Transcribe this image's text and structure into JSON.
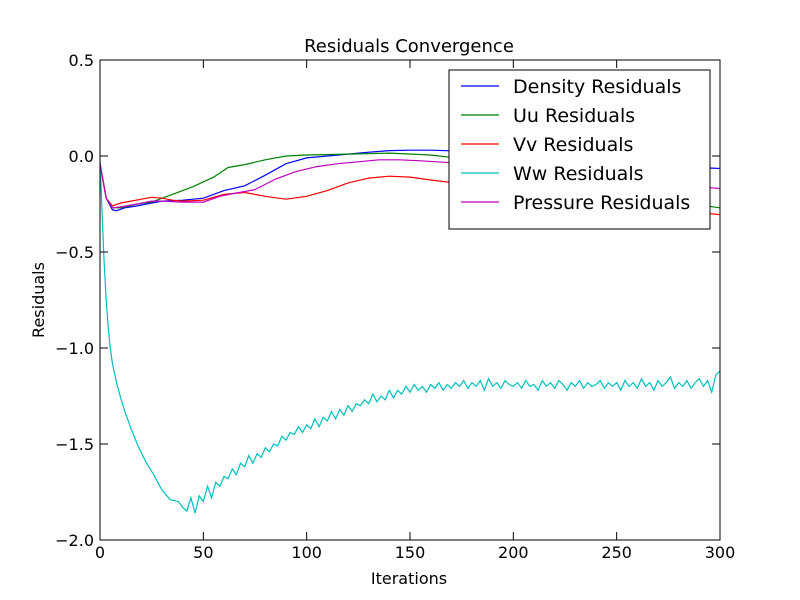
{
  "chart_data": {
    "type": "line",
    "title": "Residuals Convergence",
    "xlabel": "Iterations",
    "ylabel": "Residuals",
    "xlim": [
      0,
      300
    ],
    "ylim": [
      -2.0,
      0.5
    ],
    "x_ticks": [
      "0",
      "50",
      "100",
      "150",
      "200",
      "250",
      "300"
    ],
    "y_ticks": [
      "0.5",
      "0.0",
      "−0.5",
      "−1.0",
      "−1.5",
      "−2.0"
    ],
    "grid": false,
    "legend_position": "top-right",
    "series": [
      {
        "name": "Density Residuals",
        "color": "#0000ff",
        "points": [
          [
            0,
            -0.04
          ],
          [
            3,
            -0.22
          ],
          [
            6,
            -0.28
          ],
          [
            8,
            -0.285
          ],
          [
            12,
            -0.27
          ],
          [
            18,
            -0.26
          ],
          [
            25,
            -0.245
          ],
          [
            30,
            -0.235
          ],
          [
            40,
            -0.23
          ],
          [
            50,
            -0.22
          ],
          [
            60,
            -0.18
          ],
          [
            70,
            -0.155
          ],
          [
            80,
            -0.1
          ],
          [
            90,
            -0.04
          ],
          [
            100,
            -0.01
          ],
          [
            110,
            0.0
          ],
          [
            120,
            0.01
          ],
          [
            130,
            0.02
          ],
          [
            140,
            0.028
          ],
          [
            150,
            0.03
          ],
          [
            160,
            0.03
          ],
          [
            175,
            0.025
          ],
          [
            190,
            0.01
          ],
          [
            205,
            -0.005
          ],
          [
            220,
            -0.02
          ],
          [
            240,
            -0.035
          ],
          [
            260,
            -0.045
          ],
          [
            280,
            -0.055
          ],
          [
            300,
            -0.065
          ]
        ]
      },
      {
        "name": "Uu Residuals",
        "color": "#008000",
        "points": [
          [
            0,
            -0.04
          ],
          [
            3,
            -0.22
          ],
          [
            6,
            -0.27
          ],
          [
            10,
            -0.27
          ],
          [
            18,
            -0.25
          ],
          [
            25,
            -0.24
          ],
          [
            35,
            -0.2
          ],
          [
            45,
            -0.16
          ],
          [
            55,
            -0.11
          ],
          [
            62,
            -0.06
          ],
          [
            70,
            -0.045
          ],
          [
            80,
            -0.02
          ],
          [
            90,
            0.0
          ],
          [
            100,
            0.005
          ],
          [
            120,
            0.01
          ],
          [
            140,
            0.015
          ],
          [
            160,
            0.005
          ],
          [
            180,
            -0.02
          ],
          [
            200,
            -0.06
          ],
          [
            220,
            -0.1
          ],
          [
            240,
            -0.15
          ],
          [
            260,
            -0.2
          ],
          [
            280,
            -0.24
          ],
          [
            300,
            -0.27
          ]
        ]
      },
      {
        "name": "Vv Residuals",
        "color": "#ff0000",
        "points": [
          [
            0,
            -0.04
          ],
          [
            3,
            -0.22
          ],
          [
            6,
            -0.26
          ],
          [
            10,
            -0.245
          ],
          [
            15,
            -0.235
          ],
          [
            20,
            -0.225
          ],
          [
            25,
            -0.215
          ],
          [
            30,
            -0.22
          ],
          [
            35,
            -0.23
          ],
          [
            40,
            -0.235
          ],
          [
            50,
            -0.23
          ],
          [
            60,
            -0.2
          ],
          [
            70,
            -0.19
          ],
          [
            80,
            -0.21
          ],
          [
            90,
            -0.225
          ],
          [
            100,
            -0.21
          ],
          [
            110,
            -0.18
          ],
          [
            120,
            -0.14
          ],
          [
            130,
            -0.115
          ],
          [
            140,
            -0.105
          ],
          [
            150,
            -0.11
          ],
          [
            160,
            -0.125
          ],
          [
            175,
            -0.145
          ],
          [
            190,
            -0.165
          ],
          [
            210,
            -0.19
          ],
          [
            230,
            -0.22
          ],
          [
            250,
            -0.25
          ],
          [
            270,
            -0.275
          ],
          [
            290,
            -0.295
          ],
          [
            300,
            -0.305
          ]
        ]
      },
      {
        "name": "Ww Residuals",
        "color": "#00bfbf",
        "points": [
          [
            0,
            -0.02
          ],
          [
            1,
            -0.3
          ],
          [
            2,
            -0.55
          ],
          [
            3,
            -0.75
          ],
          [
            4,
            -0.9
          ],
          [
            5,
            -1.0
          ],
          [
            6,
            -1.08
          ],
          [
            8,
            -1.18
          ],
          [
            10,
            -1.26
          ],
          [
            12,
            -1.33
          ],
          [
            15,
            -1.42
          ],
          [
            18,
            -1.5
          ],
          [
            22,
            -1.59
          ],
          [
            26,
            -1.66
          ],
          [
            30,
            -1.74
          ],
          [
            34,
            -1.79
          ],
          [
            38,
            -1.8
          ],
          [
            40,
            -1.83
          ],
          [
            42,
            -1.85
          ],
          [
            44,
            -1.78
          ],
          [
            46,
            -1.86
          ],
          [
            48,
            -1.77
          ],
          [
            50,
            -1.8
          ],
          [
            52,
            -1.72
          ],
          [
            54,
            -1.78
          ],
          [
            56,
            -1.7
          ],
          [
            58,
            -1.72
          ],
          [
            60,
            -1.67
          ],
          [
            62,
            -1.68
          ],
          [
            64,
            -1.63
          ],
          [
            66,
            -1.66
          ],
          [
            68,
            -1.6
          ],
          [
            70,
            -1.62
          ],
          [
            72,
            -1.56
          ],
          [
            74,
            -1.6
          ],
          [
            76,
            -1.55
          ],
          [
            78,
            -1.57
          ],
          [
            80,
            -1.52
          ],
          [
            82,
            -1.54
          ],
          [
            84,
            -1.5
          ],
          [
            86,
            -1.51
          ],
          [
            88,
            -1.46
          ],
          [
            90,
            -1.48
          ],
          [
            92,
            -1.44
          ],
          [
            94,
            -1.45
          ],
          [
            96,
            -1.41
          ],
          [
            98,
            -1.44
          ],
          [
            100,
            -1.4
          ],
          [
            102,
            -1.42
          ],
          [
            104,
            -1.37
          ],
          [
            106,
            -1.41
          ],
          [
            108,
            -1.36
          ],
          [
            110,
            -1.38
          ],
          [
            112,
            -1.33
          ],
          [
            114,
            -1.37
          ],
          [
            116,
            -1.32
          ],
          [
            118,
            -1.35
          ],
          [
            120,
            -1.3
          ],
          [
            122,
            -1.33
          ],
          [
            124,
            -1.29
          ],
          [
            126,
            -1.3
          ],
          [
            128,
            -1.27
          ],
          [
            130,
            -1.29
          ],
          [
            132,
            -1.24
          ],
          [
            134,
            -1.28
          ],
          [
            136,
            -1.25
          ],
          [
            138,
            -1.27
          ],
          [
            140,
            -1.22
          ],
          [
            142,
            -1.26
          ],
          [
            144,
            -1.22
          ],
          [
            146,
            -1.24
          ],
          [
            148,
            -1.2
          ],
          [
            150,
            -1.23
          ],
          [
            152,
            -1.19
          ],
          [
            154,
            -1.22
          ],
          [
            156,
            -1.2
          ],
          [
            158,
            -1.23
          ],
          [
            160,
            -1.19
          ],
          [
            162,
            -1.21
          ],
          [
            164,
            -1.18
          ],
          [
            166,
            -1.22
          ],
          [
            168,
            -1.19
          ],
          [
            170,
            -1.21
          ],
          [
            172,
            -1.18
          ],
          [
            174,
            -1.2
          ],
          [
            176,
            -1.17
          ],
          [
            178,
            -1.21
          ],
          [
            180,
            -1.18
          ],
          [
            182,
            -1.2
          ],
          [
            184,
            -1.17
          ],
          [
            186,
            -1.22
          ],
          [
            188,
            -1.16
          ],
          [
            190,
            -1.2
          ],
          [
            192,
            -1.18
          ],
          [
            194,
            -1.21
          ],
          [
            196,
            -1.17
          ],
          [
            198,
            -1.19
          ],
          [
            200,
            -1.2
          ],
          [
            202,
            -1.18
          ],
          [
            204,
            -1.21
          ],
          [
            206,
            -1.17
          ],
          [
            208,
            -1.2
          ],
          [
            210,
            -1.19
          ],
          [
            212,
            -1.22
          ],
          [
            214,
            -1.17
          ],
          [
            216,
            -1.2
          ],
          [
            218,
            -1.18
          ],
          [
            220,
            -1.21
          ],
          [
            222,
            -1.17
          ],
          [
            224,
            -1.19
          ],
          [
            226,
            -1.22
          ],
          [
            228,
            -1.18
          ],
          [
            230,
            -1.2
          ],
          [
            232,
            -1.17
          ],
          [
            234,
            -1.21
          ],
          [
            236,
            -1.18
          ],
          [
            238,
            -1.2
          ],
          [
            240,
            -1.19
          ],
          [
            242,
            -1.17
          ],
          [
            244,
            -1.21
          ],
          [
            246,
            -1.18
          ],
          [
            248,
            -1.2
          ],
          [
            250,
            -1.18
          ],
          [
            252,
            -1.22
          ],
          [
            254,
            -1.17
          ],
          [
            256,
            -1.2
          ],
          [
            258,
            -1.18
          ],
          [
            260,
            -1.21
          ],
          [
            262,
            -1.16
          ],
          [
            264,
            -1.2
          ],
          [
            266,
            -1.18
          ],
          [
            268,
            -1.22
          ],
          [
            270,
            -1.17
          ],
          [
            272,
            -1.2
          ],
          [
            274,
            -1.18
          ],
          [
            276,
            -1.15
          ],
          [
            278,
            -1.21
          ],
          [
            280,
            -1.18
          ],
          [
            282,
            -1.2
          ],
          [
            284,
            -1.17
          ],
          [
            286,
            -1.21
          ],
          [
            288,
            -1.18
          ],
          [
            290,
            -1.16
          ],
          [
            292,
            -1.2
          ],
          [
            294,
            -1.17
          ],
          [
            296,
            -1.23
          ],
          [
            298,
            -1.14
          ],
          [
            300,
            -1.12
          ]
        ]
      },
      {
        "name": "Pressure Residuals",
        "color": "#bf00bf",
        "points": [
          [
            0,
            -0.04
          ],
          [
            3,
            -0.22
          ],
          [
            6,
            -0.27
          ],
          [
            10,
            -0.265
          ],
          [
            18,
            -0.25
          ],
          [
            25,
            -0.235
          ],
          [
            30,
            -0.235
          ],
          [
            40,
            -0.24
          ],
          [
            50,
            -0.24
          ],
          [
            58,
            -0.21
          ],
          [
            65,
            -0.195
          ],
          [
            75,
            -0.175
          ],
          [
            85,
            -0.12
          ],
          [
            95,
            -0.08
          ],
          [
            105,
            -0.055
          ],
          [
            115,
            -0.04
          ],
          [
            125,
            -0.03
          ],
          [
            135,
            -0.02
          ],
          [
            145,
            -0.02
          ],
          [
            155,
            -0.025
          ],
          [
            170,
            -0.035
          ],
          [
            185,
            -0.05
          ],
          [
            200,
            -0.07
          ],
          [
            220,
            -0.09
          ],
          [
            240,
            -0.11
          ],
          [
            260,
            -0.13
          ],
          [
            280,
            -0.15
          ],
          [
            300,
            -0.17
          ]
        ]
      }
    ]
  }
}
